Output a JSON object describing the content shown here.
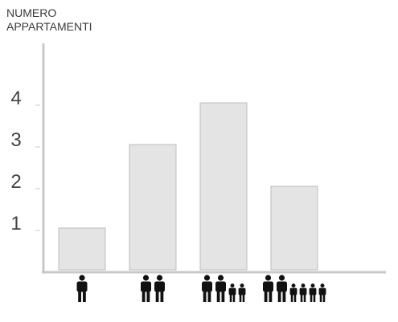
{
  "chart_data": {
    "type": "bar",
    "ylabel_lines": [
      "NUMERO",
      "APPARTAMENTI"
    ],
    "xlabel": "",
    "title": "",
    "y_ticks": [
      1,
      2,
      3,
      4
    ],
    "ylim": [
      0,
      5
    ],
    "grid": false,
    "legend": "none",
    "categories": [
      "1 adult",
      "2 adults",
      "2 adults + 2 children",
      "2 adults + 4 children"
    ],
    "category_icons": [
      {
        "adults": 1,
        "children": 0
      },
      {
        "adults": 2,
        "children": 0
      },
      {
        "adults": 2,
        "children": 2
      },
      {
        "adults": 2,
        "children": 4
      }
    ],
    "values": [
      1,
      3,
      4,
      2
    ],
    "colors": {
      "bar_fill": "#e4e4e4",
      "bar_stroke": "#bdbdbd",
      "axis": "#c8c8c8",
      "tick_text": "#444444",
      "icon": "#111111"
    }
  }
}
